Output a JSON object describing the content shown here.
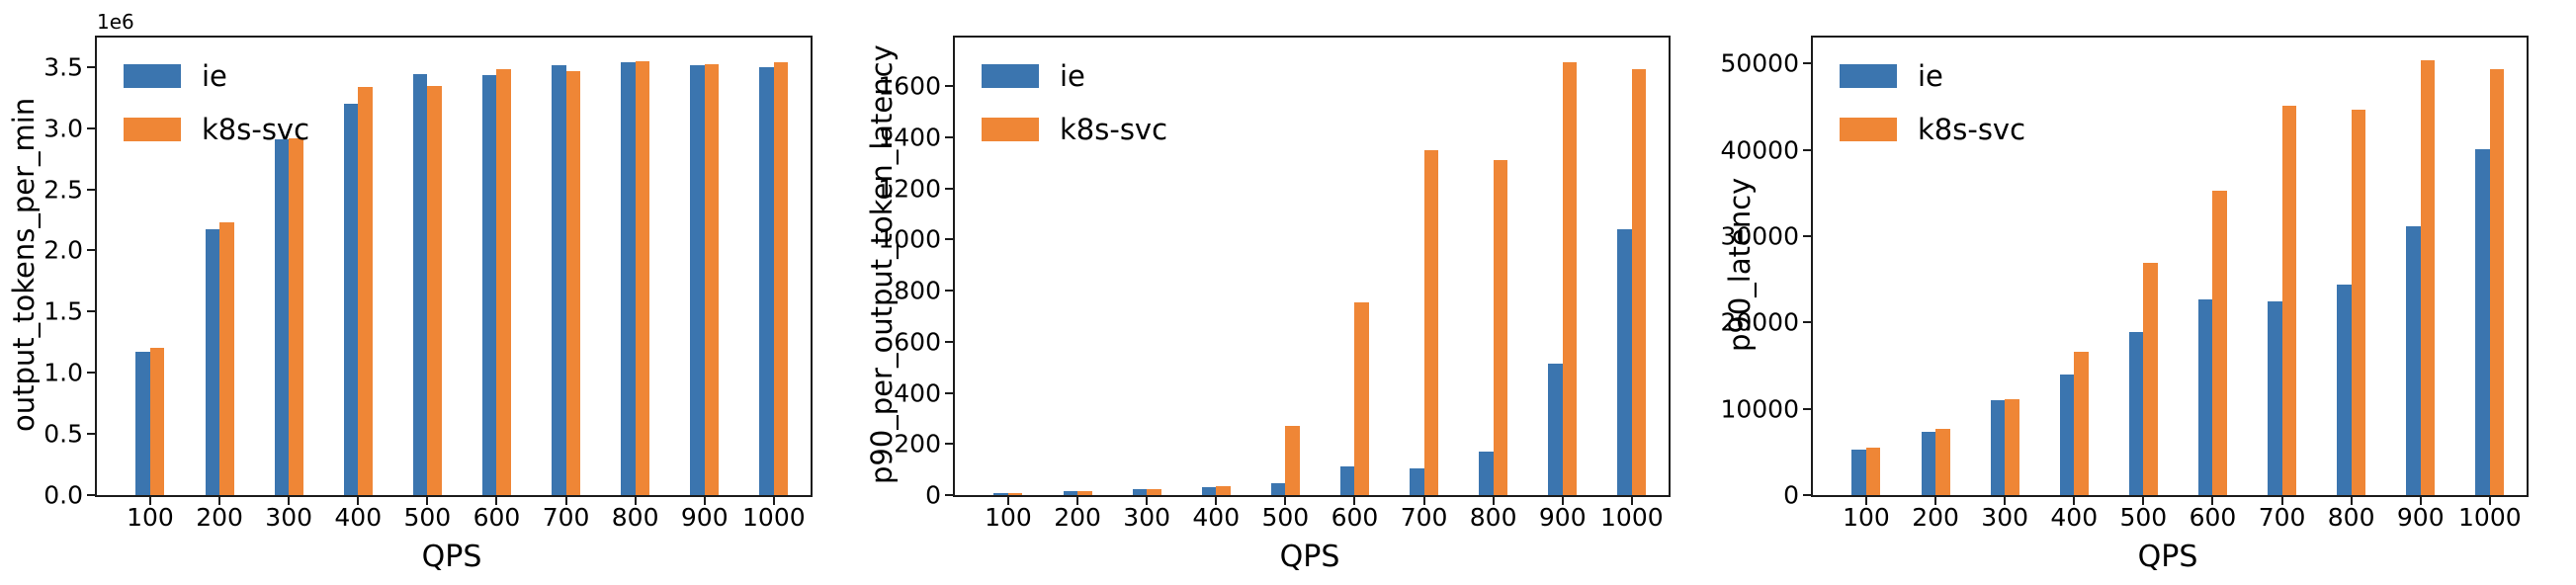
{
  "figure": {
    "background": "#ffffff",
    "text_color": "#000000",
    "spine_color": "#1c1c1c",
    "series_colors": {
      "ie": "#3b75af",
      "k8s-svc": "#ef8636"
    }
  },
  "chart_data": [
    {
      "type": "bar",
      "title": "",
      "ylabel": "output_tokens_per_min",
      "xlabel": "QPS",
      "offset_text": "1e6",
      "grid": false,
      "legend_position": "upper-left",
      "legend_entries": [
        "ie",
        "k8s-svc"
      ],
      "categories": [
        "100",
        "200",
        "300",
        "400",
        "500",
        "600",
        "700",
        "800",
        "900",
        "1000"
      ],
      "series": [
        {
          "name": "ie",
          "color": "#3b75af",
          "values": [
            1170000,
            2170000,
            2910000,
            3195000,
            3445000,
            3430000,
            3515000,
            3540000,
            3510000,
            3500000
          ]
        },
        {
          "name": "k8s-svc",
          "color": "#ef8636",
          "values": [
            1200000,
            2230000,
            2920000,
            3340000,
            3345000,
            3480000,
            3465000,
            3550000,
            3520000,
            3540000
          ]
        }
      ],
      "ylim": [
        0,
        3740000
      ],
      "yticks": [
        {
          "value": 0,
          "label": "0.0"
        },
        {
          "value": 500000,
          "label": "0.5"
        },
        {
          "value": 1000000,
          "label": "1.0"
        },
        {
          "value": 1500000,
          "label": "1.5"
        },
        {
          "value": 2000000,
          "label": "2.0"
        },
        {
          "value": 2500000,
          "label": "2.5"
        },
        {
          "value": 3000000,
          "label": "3.0"
        },
        {
          "value": 3500000,
          "label": "3.5"
        }
      ]
    },
    {
      "type": "bar",
      "title": "",
      "ylabel": "p90_per_output_token_latency",
      "xlabel": "QPS",
      "offset_text": "",
      "grid": false,
      "legend_position": "upper-left",
      "legend_entries": [
        "ie",
        "k8s-svc"
      ],
      "categories": [
        "100",
        "200",
        "300",
        "400",
        "500",
        "600",
        "700",
        "800",
        "900",
        "1000"
      ],
      "series": [
        {
          "name": "ie",
          "color": "#3b75af",
          "values": [
            8,
            15,
            22,
            32,
            46,
            113,
            103,
            172,
            515,
            1040
          ]
        },
        {
          "name": "k8s-svc",
          "color": "#ef8636",
          "values": [
            8,
            16,
            23,
            36,
            270,
            755,
            1350,
            1310,
            1695,
            1665
          ]
        }
      ],
      "ylim": [
        0,
        1790
      ],
      "yticks": [
        {
          "value": 0,
          "label": "0"
        },
        {
          "value": 200,
          "label": "200"
        },
        {
          "value": 400,
          "label": "400"
        },
        {
          "value": 600,
          "label": "600"
        },
        {
          "value": 800,
          "label": "800"
        },
        {
          "value": 1000,
          "label": "1000"
        },
        {
          "value": 1200,
          "label": "1200"
        },
        {
          "value": 1400,
          "label": "1400"
        },
        {
          "value": 1600,
          "label": "1600"
        }
      ]
    },
    {
      "type": "bar",
      "title": "",
      "ylabel": "p90_latency",
      "xlabel": "QPS",
      "offset_text": "",
      "grid": false,
      "legend_position": "upper-left",
      "legend_entries": [
        "ie",
        "k8s-svc"
      ],
      "categories": [
        "100",
        "200",
        "300",
        "400",
        "500",
        "600",
        "700",
        "800",
        "900",
        "1000"
      ],
      "series": [
        {
          "name": "ie",
          "color": "#3b75af",
          "values": [
            5250,
            7350,
            10950,
            13950,
            18900,
            22700,
            22450,
            24350,
            31100,
            40100
          ]
        },
        {
          "name": "k8s-svc",
          "color": "#ef8636",
          "values": [
            5450,
            7650,
            11150,
            16600,
            26900,
            35300,
            45100,
            44700,
            50400,
            49300
          ]
        }
      ],
      "ylim": [
        0,
        53000
      ],
      "yticks": [
        {
          "value": 0,
          "label": "0"
        },
        {
          "value": 10000,
          "label": "10000"
        },
        {
          "value": 20000,
          "label": "20000"
        },
        {
          "value": 30000,
          "label": "30000"
        },
        {
          "value": 40000,
          "label": "40000"
        },
        {
          "value": 50000,
          "label": "50000"
        }
      ]
    }
  ]
}
